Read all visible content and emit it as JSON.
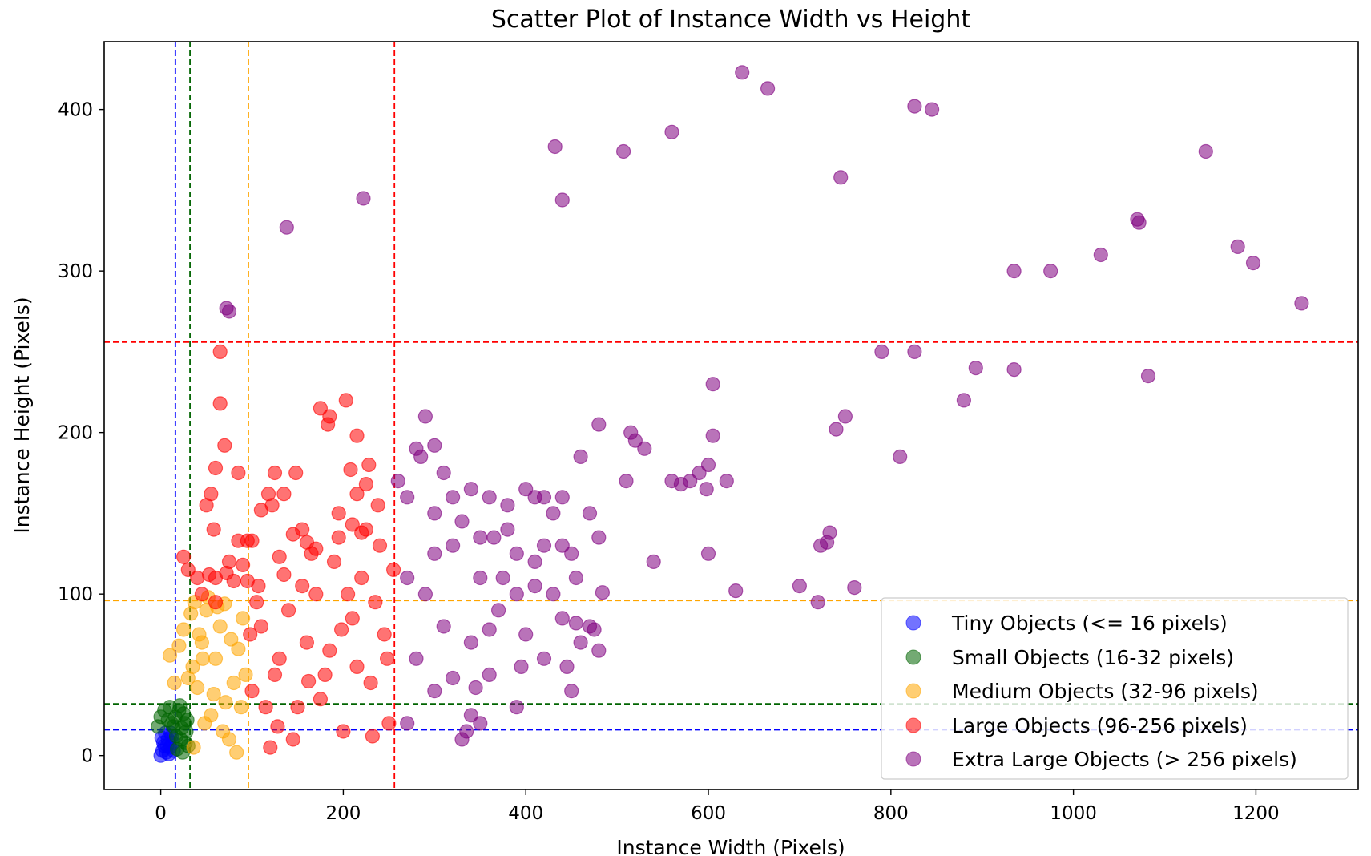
{
  "chart_data": {
    "type": "scatter",
    "title": "Scatter Plot of Instance Width vs Height",
    "xlabel": "Instance Width (Pixels)",
    "ylabel": "Instance Height (Pixels)",
    "xlim": [
      -62,
      1312
    ],
    "ylim": [
      -21,
      442
    ],
    "xticks": [
      0,
      200,
      400,
      600,
      800,
      1000,
      1200
    ],
    "yticks": [
      0,
      100,
      200,
      300,
      400
    ],
    "grid": false,
    "legend_position": "lower right",
    "legend": [
      {
        "label": "Tiny Objects (<= 16 pixels)",
        "color": "#0000ff"
      },
      {
        "label": "Small Objects (16-32 pixels)",
        "color": "#006400"
      },
      {
        "label": "Medium Objects (32-96 pixels)",
        "color": "#ffa500"
      },
      {
        "label": "Large Objects (96-256 pixels)",
        "color": "#ff0000"
      },
      {
        "label": "Extra Large Objects (> 256 pixels)",
        "color": "#800080"
      }
    ],
    "threshold_lines": [
      {
        "value": 16,
        "color": "#0000ff"
      },
      {
        "value": 32,
        "color": "#006400"
      },
      {
        "value": 96,
        "color": "#ffa500"
      },
      {
        "value": 256,
        "color": "#ff0000"
      }
    ],
    "series": [
      {
        "color": "#0000ff",
        "points": [
          [
            0,
            0
          ],
          [
            2,
            3
          ],
          [
            4,
            6
          ],
          [
            6,
            2
          ],
          [
            8,
            10
          ],
          [
            10,
            5
          ],
          [
            12,
            12
          ],
          [
            14,
            3
          ],
          [
            5,
            14
          ],
          [
            3,
            8
          ],
          [
            9,
            1
          ],
          [
            13,
            8
          ],
          [
            7,
            6
          ],
          [
            11,
            14
          ],
          [
            1,
            11
          ]
        ]
      },
      {
        "color": "#006400",
        "points": [
          [
            16,
            24
          ],
          [
            18,
            4
          ],
          [
            20,
            28
          ],
          [
            22,
            10
          ],
          [
            24,
            2
          ],
          [
            26,
            20
          ],
          [
            28,
            15
          ],
          [
            30,
            6
          ],
          [
            17,
            12
          ],
          [
            21,
            31
          ],
          [
            25,
            26
          ],
          [
            29,
            22
          ],
          [
            -3,
            18
          ],
          [
            0,
            24
          ],
          [
            4,
            28
          ],
          [
            8,
            22
          ],
          [
            10,
            30
          ],
          [
            12,
            20
          ],
          [
            14,
            18
          ],
          [
            23,
            17
          ],
          [
            27,
            8
          ]
        ]
      },
      {
        "color": "#ffa500",
        "points": [
          [
            36,
            5
          ],
          [
            40,
            42
          ],
          [
            45,
            70
          ],
          [
            50,
            90
          ],
          [
            55,
            25
          ],
          [
            60,
            60
          ],
          [
            65,
            80
          ],
          [
            70,
            94
          ],
          [
            75,
            10
          ],
          [
            80,
            45
          ],
          [
            85,
            66
          ],
          [
            90,
            85
          ],
          [
            35,
            55
          ],
          [
            42,
            75
          ],
          [
            58,
            38
          ],
          [
            68,
            15
          ],
          [
            88,
            30
          ],
          [
            33,
            88
          ],
          [
            48,
            20
          ],
          [
            62,
            92
          ],
          [
            20,
            68
          ],
          [
            25,
            78
          ],
          [
            30,
            48
          ],
          [
            37,
            95
          ],
          [
            52,
            98
          ],
          [
            77,
            72
          ],
          [
            83,
            2
          ],
          [
            93,
            50
          ],
          [
            46,
            60
          ],
          [
            71,
            33
          ],
          [
            15,
            45
          ],
          [
            10,
            62
          ]
        ]
      },
      {
        "color": "#ff0000",
        "points": [
          [
            100,
            40
          ],
          [
            110,
            80
          ],
          [
            120,
            5
          ],
          [
            130,
            60
          ],
          [
            140,
            90
          ],
          [
            150,
            30
          ],
          [
            160,
            70
          ],
          [
            170,
            100
          ],
          [
            180,
            50
          ],
          [
            190,
            120
          ],
          [
            200,
            15
          ],
          [
            210,
            85
          ],
          [
            220,
            110
          ],
          [
            230,
            45
          ],
          [
            240,
            130
          ],
          [
            250,
            20
          ],
          [
            105,
            95
          ],
          [
            135,
            112
          ],
          [
            165,
            125
          ],
          [
            195,
            135
          ],
          [
            225,
            140
          ],
          [
            115,
            30
          ],
          [
            145,
            10
          ],
          [
            185,
            65
          ],
          [
            215,
            55
          ],
          [
            245,
            75
          ],
          [
            125,
            50
          ],
          [
            175,
            35
          ],
          [
            205,
            100
          ],
          [
            235,
            95
          ],
          [
            155,
            105
          ],
          [
            255,
            115
          ],
          [
            98,
            75
          ],
          [
            128,
            18
          ],
          [
            162,
            46
          ],
          [
            198,
            78
          ],
          [
            232,
            12
          ],
          [
            248,
            60
          ],
          [
            60,
            110
          ],
          [
            65,
            250
          ],
          [
            65,
            218
          ],
          [
            70,
            192
          ],
          [
            75,
            120
          ],
          [
            80,
            108
          ],
          [
            85,
            133
          ],
          [
            95,
            133
          ],
          [
            55,
            162
          ],
          [
            60,
            178
          ],
          [
            50,
            155
          ],
          [
            72,
            113
          ],
          [
            58,
            140
          ],
          [
            100,
            133
          ],
          [
            107,
            105
          ],
          [
            110,
            152
          ],
          [
            118,
            162
          ],
          [
            125,
            175
          ],
          [
            122,
            155
          ],
          [
            130,
            123
          ],
          [
            135,
            162
          ],
          [
            148,
            175
          ],
          [
            155,
            140
          ],
          [
            175,
            215
          ],
          [
            185,
            210
          ],
          [
            203,
            220
          ],
          [
            208,
            177
          ],
          [
            215,
            198
          ],
          [
            215,
            162
          ],
          [
            225,
            168
          ],
          [
            228,
            180
          ],
          [
            238,
            155
          ],
          [
            60,
            95
          ],
          [
            85,
            175
          ],
          [
            160,
            132
          ],
          [
            195,
            150
          ],
          [
            25,
            123
          ],
          [
            30,
            115
          ],
          [
            40,
            110
          ],
          [
            45,
            100
          ],
          [
            53,
            112
          ],
          [
            90,
            118
          ],
          [
            95,
            108
          ],
          [
            170,
            128
          ],
          [
            145,
            137
          ],
          [
            210,
            143
          ],
          [
            220,
            138
          ],
          [
            183,
            205
          ]
        ]
      },
      {
        "color": "#800080",
        "points": [
          [
            270,
            20
          ],
          [
            280,
            60
          ],
          [
            290,
            100
          ],
          [
            300,
            40
          ],
          [
            310,
            80
          ],
          [
            320,
            130
          ],
          [
            330,
            10
          ],
          [
            340,
            70
          ],
          [
            350,
            110
          ],
          [
            360,
            50
          ],
          [
            370,
            90
          ],
          [
            380,
            140
          ],
          [
            390,
            30
          ],
          [
            400,
            75
          ],
          [
            410,
            120
          ],
          [
            420,
            60
          ],
          [
            430,
            100
          ],
          [
            440,
            85
          ],
          [
            450,
            40
          ],
          [
            460,
            70
          ],
          [
            470,
            80
          ],
          [
            480,
            65
          ],
          [
            300,
            150
          ],
          [
            310,
            175
          ],
          [
            320,
            160
          ],
          [
            330,
            145
          ],
          [
            340,
            165
          ],
          [
            360,
            160
          ],
          [
            380,
            155
          ],
          [
            400,
            165
          ],
          [
            410,
            160
          ],
          [
            420,
            160
          ],
          [
            430,
            150
          ],
          [
            440,
            160
          ],
          [
            440,
            130
          ],
          [
            450,
            125
          ],
          [
            460,
            185
          ],
          [
            470,
            150
          ],
          [
            480,
            135
          ],
          [
            484,
            101
          ],
          [
            290,
            210
          ],
          [
            280,
            190
          ],
          [
            285,
            185
          ],
          [
            300,
            192
          ],
          [
            260,
            170
          ],
          [
            270,
            160
          ],
          [
            345,
            42
          ],
          [
            350,
            20
          ],
          [
            335,
            15
          ],
          [
            270,
            110
          ],
          [
            420,
            130
          ],
          [
            300,
            125
          ],
          [
            390,
            125
          ],
          [
            360,
            78
          ],
          [
            320,
            48
          ],
          [
            395,
            55
          ],
          [
            445,
            55
          ],
          [
            455,
            82
          ],
          [
            475,
            78
          ],
          [
            340,
            25
          ],
          [
            375,
            110
          ],
          [
            365,
            135
          ],
          [
            455,
            110
          ],
          [
            410,
            105
          ],
          [
            350,
            135
          ],
          [
            390,
            100
          ],
          [
            480,
            205
          ],
          [
            510,
            170
          ],
          [
            515,
            200
          ],
          [
            520,
            195
          ],
          [
            530,
            190
          ],
          [
            540,
            120
          ],
          [
            560,
            170
          ],
          [
            570,
            168
          ],
          [
            580,
            170
          ],
          [
            590,
            175
          ],
          [
            600,
            180
          ],
          [
            598,
            165
          ],
          [
            600,
            125
          ],
          [
            605,
            230
          ],
          [
            605,
            198
          ],
          [
            620,
            170
          ],
          [
            630,
            102
          ],
          [
            637,
            423
          ],
          [
            665,
            413
          ],
          [
            700,
            105
          ],
          [
            720,
            95
          ],
          [
            723,
            130
          ],
          [
            730,
            132
          ],
          [
            733,
            138
          ],
          [
            740,
            202
          ],
          [
            745,
            358
          ],
          [
            750,
            210
          ],
          [
            760,
            104
          ],
          [
            790,
            250
          ],
          [
            810,
            185
          ],
          [
            826,
            402
          ],
          [
            826,
            250
          ],
          [
            845,
            400
          ],
          [
            880,
            220
          ],
          [
            893,
            240
          ],
          [
            935,
            300
          ],
          [
            935,
            239
          ],
          [
            975,
            300
          ],
          [
            1030,
            310
          ],
          [
            1070,
            332
          ],
          [
            1072,
            330
          ],
          [
            1082,
            235
          ],
          [
            1145,
            374
          ],
          [
            1180,
            315
          ],
          [
            1197,
            305
          ],
          [
            1250,
            280
          ],
          [
            72,
            277
          ],
          [
            75,
            275
          ],
          [
            138,
            327
          ],
          [
            222,
            345
          ],
          [
            432,
            377
          ],
          [
            440,
            344
          ],
          [
            507,
            374
          ],
          [
            560,
            386
          ]
        ]
      }
    ]
  }
}
